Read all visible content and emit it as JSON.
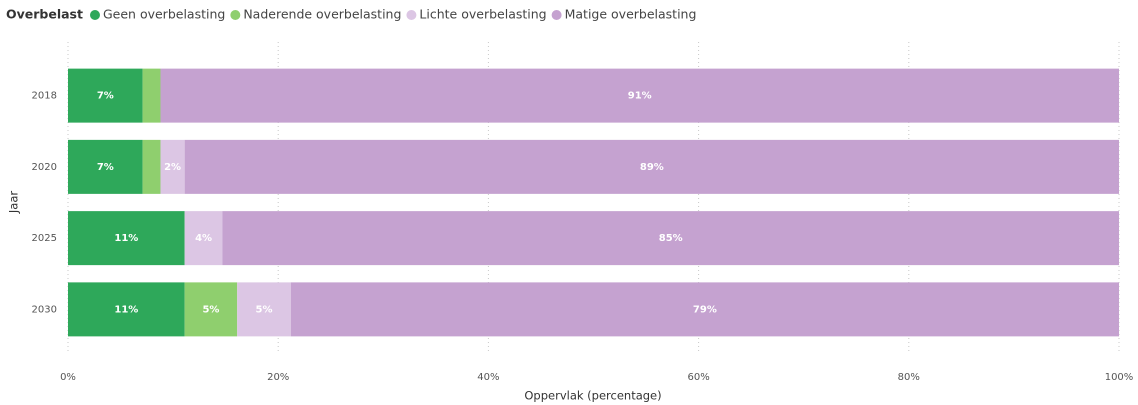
{
  "chart_data": {
    "type": "bar",
    "orientation": "horizontal",
    "stacked": true,
    "legend_title": "Overbelast",
    "legend_position": "top-left",
    "x_label": "Oppervlak (percentage)",
    "y_label": "Jaar",
    "categories": [
      "2018",
      "2020",
      "2025",
      "2030"
    ],
    "series": [
      {
        "name": "Geen overbelasting",
        "color": "#2ea85a",
        "values": [
          7.1,
          7.1,
          11.1,
          11.1
        ],
        "value_labels": [
          "7%",
          "7%",
          "11%",
          "11%"
        ]
      },
      {
        "name": "Naderende overbelasting",
        "color": "#8fcf6e",
        "values": [
          1.7,
          1.7,
          0,
          5.0
        ],
        "value_labels": [
          null,
          null,
          null,
          "5%"
        ]
      },
      {
        "name": "Lichte overbelasting",
        "color": "#dcc6e4",
        "values": [
          0,
          2.3,
          3.6,
          5.1
        ],
        "value_labels": [
          null,
          "2%",
          "4%",
          "5%"
        ]
      },
      {
        "name": "Matige overbelasting",
        "color": "#c5a2d0",
        "values": [
          91.2,
          88.9,
          85.3,
          78.8
        ],
        "value_labels": [
          "91%",
          "89%",
          "85%",
          "79%"
        ]
      }
    ],
    "xlim": [
      0,
      100
    ],
    "xticks": [
      {
        "value": 0,
        "label": "0%"
      },
      {
        "value": 20,
        "label": "20%"
      },
      {
        "value": 40,
        "label": "40%"
      },
      {
        "value": 60,
        "label": "60%"
      },
      {
        "value": 80,
        "label": "80%"
      },
      {
        "value": 100,
        "label": "100%"
      }
    ],
    "grid": true
  }
}
